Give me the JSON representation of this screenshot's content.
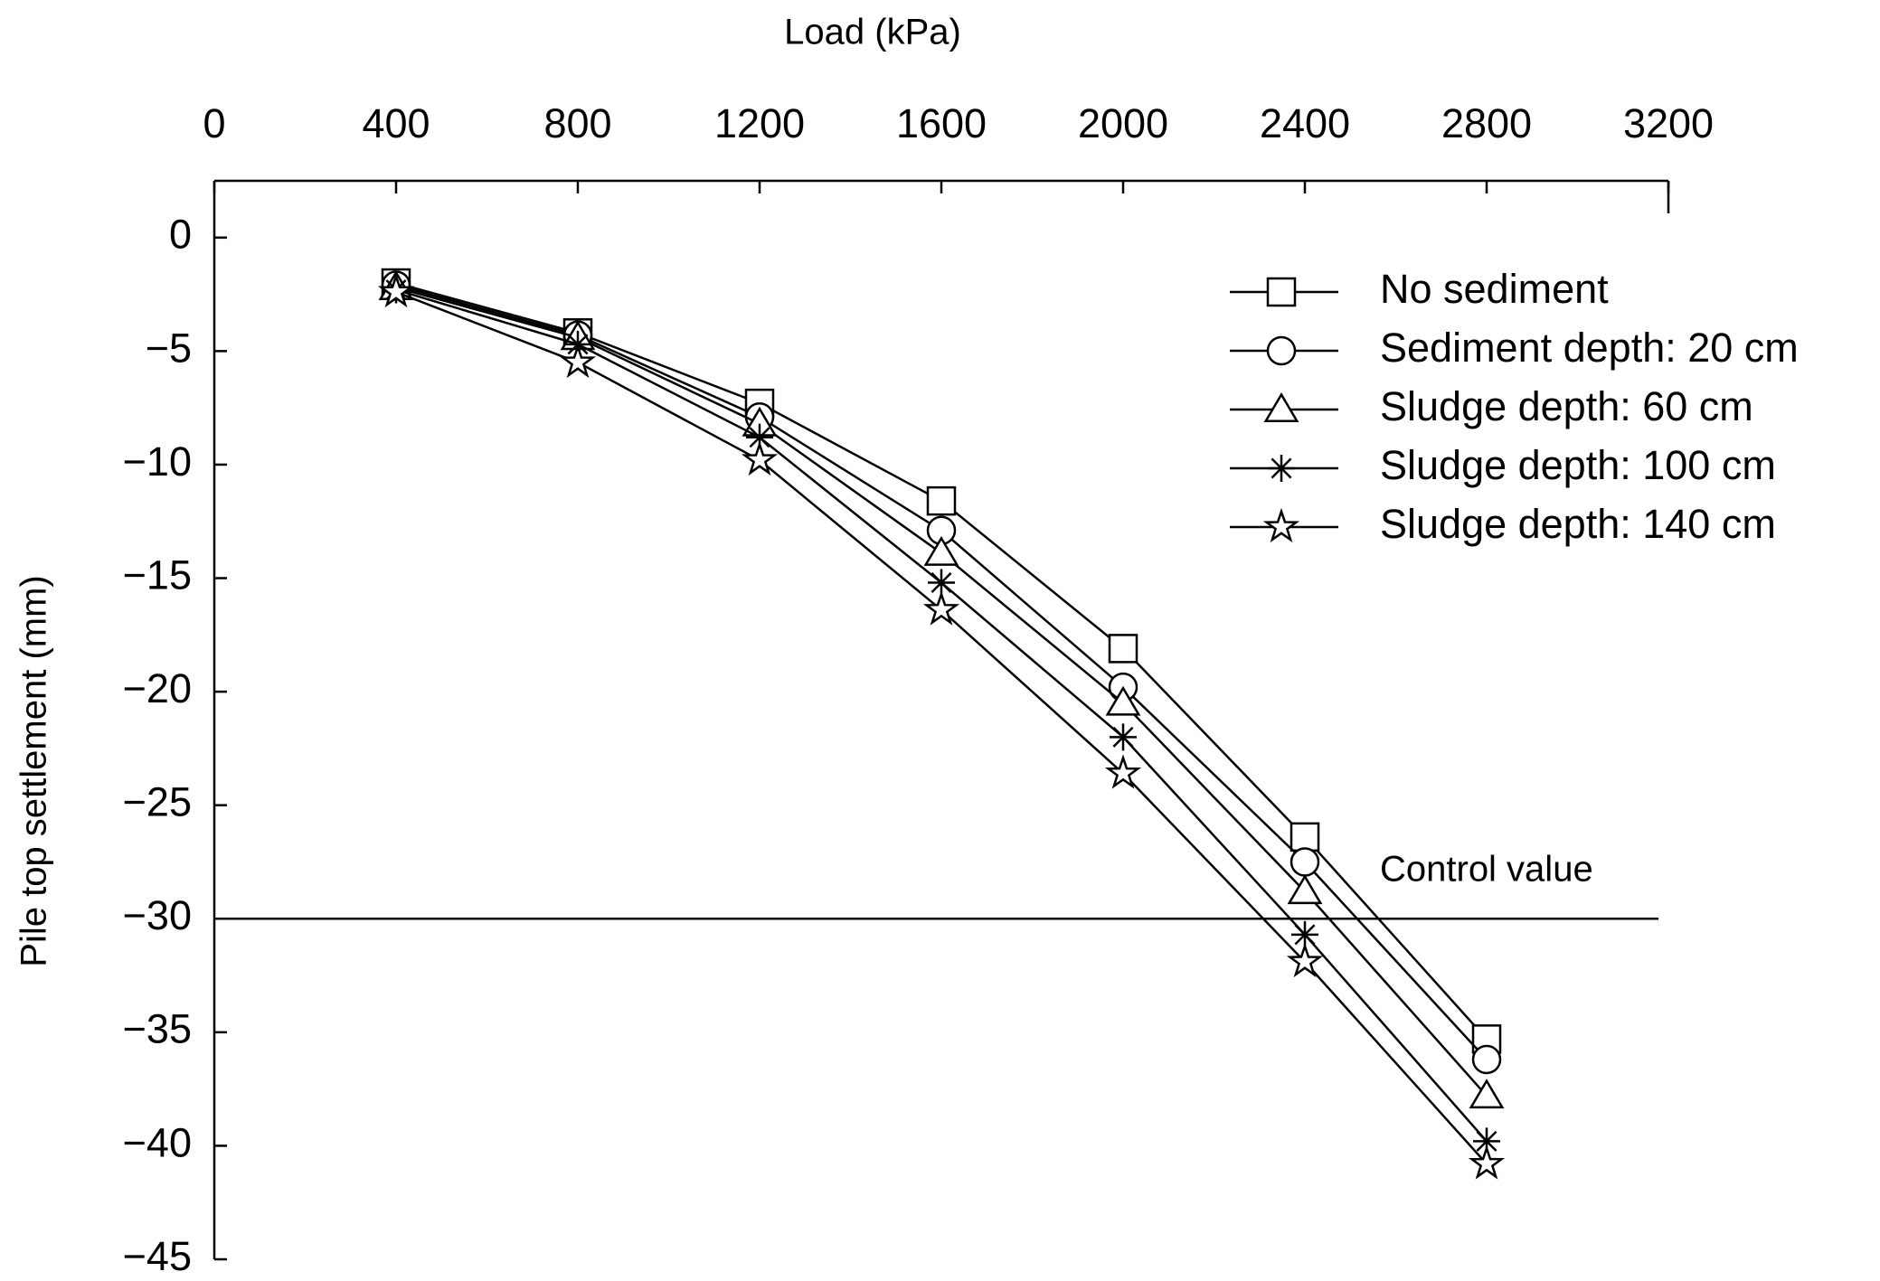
{
  "chart_data": {
    "type": "line",
    "x_label": "Load (kPa)",
    "y_label": "Pile top settlement (mm)",
    "x": [
      400,
      800,
      1200,
      1600,
      2000,
      2400,
      2800
    ],
    "series": [
      {
        "name": "No sediment",
        "color": "#000000",
        "marker": "square",
        "values": [
          -2.0,
          -4.2,
          -7.3,
          -11.6,
          -18.1,
          -26.4,
          -35.3
        ]
      },
      {
        "name": "Sediment depth: 20 cm",
        "color": "#000000",
        "marker": "circle",
        "values": [
          -2.1,
          -4.3,
          -7.9,
          -12.9,
          -19.8,
          -27.5,
          -36.2
        ]
      },
      {
        "name": "Sludge depth: 60 cm",
        "color": "#000000",
        "marker": "triangle",
        "values": [
          -2.2,
          -4.4,
          -8.2,
          -13.9,
          -20.5,
          -28.8,
          -37.8
        ]
      },
      {
        "name": "Sludge depth: 100 cm",
        "color": "#000000",
        "marker": "asterisk",
        "values": [
          -2.3,
          -4.7,
          -8.8,
          -15.2,
          -22.0,
          -30.7,
          -39.8
        ]
      },
      {
        "name": "Sludge depth: 140 cm",
        "color": "#000000",
        "marker": "star",
        "values": [
          -2.4,
          -5.5,
          -9.8,
          -16.4,
          -23.6,
          -31.9,
          -40.8
        ]
      }
    ],
    "control_value": -30,
    "control_label": "Control value",
    "xlim": [
      0,
      3200
    ],
    "xticks": [
      0,
      400,
      800,
      1200,
      1600,
      2000,
      2400,
      2800,
      3200
    ],
    "ylim": [
      -45,
      2.5
    ],
    "yticks": [
      0,
      {
        "value": -5,
        "label": "−5"
      },
      {
        "value": -10,
        "label": "−10"
      },
      {
        "value": -15,
        "label": "−15"
      },
      {
        "value": -20,
        "label": "−20"
      },
      {
        "value": -25,
        "label": "−25"
      },
      {
        "value": -30,
        "label": "−30"
      },
      {
        "value": -35,
        "label": "−35"
      },
      {
        "value": -40,
        "label": "−40"
      },
      {
        "value": -45,
        "label": "−45"
      }
    ],
    "x_axis_position": "top",
    "legend": "upper right",
    "grid": false
  }
}
